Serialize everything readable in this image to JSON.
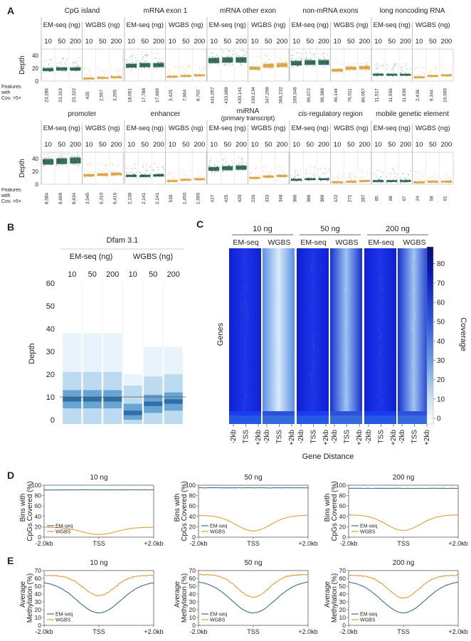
{
  "colors": {
    "emseq": "#1f5c4a",
    "wgbs": "#d9a03a",
    "lineEM": "#3d6f82",
    "lineWG": "#d9a03a",
    "heat_low": "#1010dd",
    "heat_high": "#e6f2ff"
  },
  "panelA": {
    "label": "A",
    "depth_label": "Depth",
    "feat_label": [
      "Features",
      "with",
      "Cov. >5×"
    ],
    "emseq_hdr": "EM-seq (ng)",
    "wgbs_hdr": "WGBS (ng)",
    "doses": [
      "10",
      "50",
      "200"
    ],
    "yticks": [
      "40",
      "20",
      "0"
    ],
    "row1": [
      {
        "title": "CpG island",
        "counts": [
          "23,286",
          "23,319",
          "23,322",
          "435",
          "2,557",
          "3,265"
        ],
        "em": [
          18,
          19,
          19
        ],
        "wg": [
          4,
          5,
          6
        ]
      },
      {
        "title": "mRNA exon 1",
        "counts": [
          "18,051",
          "17,788",
          "17,669",
          "3,425",
          "7,964",
          "8,702"
        ],
        "em": [
          24,
          25,
          25
        ],
        "wg": [
          7,
          8,
          9
        ]
      },
      {
        "title": "mRNA other exon",
        "counts": [
          "441,057",
          "433,989",
          "430,141",
          "230,134",
          "347,299",
          "366,232"
        ],
        "em": [
          32,
          33,
          33
        ],
        "wg": [
          20,
          24,
          25
        ]
      },
      {
        "title": "non-mRNA exons",
        "counts": [
          "100,346",
          "99,072",
          "98,388",
          "46,144",
          "76,011",
          "80,057"
        ],
        "em": [
          28,
          29,
          29
        ],
        "wg": [
          17,
          20,
          21
        ]
      },
      {
        "title": "long noncoding RNA",
        "counts": [
          "11,517",
          "11,556",
          "11,639",
          "2,436",
          "9,344",
          "10,065"
        ],
        "em": [
          10,
          10,
          10
        ],
        "wg": [
          6,
          8,
          9
        ]
      }
    ],
    "row2": [
      {
        "title": "promoter",
        "counts": [
          "8,584",
          "8,609",
          "8,634",
          "3,545",
          "6,310",
          "6,416"
        ],
        "em": [
          35,
          36,
          37
        ],
        "wg": [
          14,
          15,
          16
        ]
      },
      {
        "title": "enhancer",
        "counts": [
          "2,138",
          "2,141",
          "2,141",
          "539",
          "1,450",
          "1,555"
        ],
        "em": [
          13,
          13,
          14
        ],
        "wg": [
          5,
          7,
          8
        ]
      },
      {
        "title": "miRNA",
        "subtitle": "(primary transcript)",
        "counts": [
          "427",
          "425",
          "420",
          "226",
          "333",
          "348"
        ],
        "em": [
          24,
          25,
          26
        ],
        "wg": [
          10,
          12,
          13
        ]
      },
      {
        "title": "cis-regulatory region",
        "italic_part": "cis",
        "counts": [
          "386",
          "386",
          "389",
          "122",
          "271",
          "287"
        ],
        "em": [
          7,
          8,
          8
        ],
        "wg": [
          3,
          4,
          5
        ]
      },
      {
        "title": "mobile genetic element",
        "counts": [
          "65",
          "68",
          "67",
          "24",
          "58",
          "61"
        ],
        "em": [
          5,
          5,
          5
        ],
        "wg": [
          3,
          4,
          4
        ]
      }
    ]
  },
  "panelB": {
    "label": "B",
    "title": "Dfam 3.1",
    "emseq_hdr": "EM-seq (ng)",
    "wgbs_hdr": "WGBS (ng)",
    "doses": [
      "10",
      "50",
      "200"
    ],
    "ylabel": "Depth",
    "yticks": [
      "60",
      "50",
      "40",
      "30",
      "20",
      "10",
      "0"
    ],
    "medians": [
      9,
      9,
      9,
      3,
      7,
      8
    ]
  },
  "panelC": {
    "label": "C",
    "groups": [
      "10 ng",
      "50 ng",
      "200 ng"
    ],
    "methods": [
      "EM-seq",
      "WGBS"
    ],
    "ylabel": "Genes",
    "xticks": [
      "-2kb",
      "TSS",
      "+2kb"
    ],
    "xlabel": "Gene Distance",
    "colorbar_label": "Coverage",
    "colorbar_ticks": [
      "80",
      "70",
      "60",
      "50",
      "40",
      "30",
      "20",
      "10",
      "0"
    ]
  },
  "panelD": {
    "label": "D",
    "ylabel": [
      "Bins with",
      "CpGs Covered (%)"
    ],
    "yticks": [
      "100",
      "80",
      "60",
      "40",
      "20",
      "0"
    ],
    "xticks": [
      "-2.0kb",
      "TSS",
      "+2.0kb"
    ],
    "legend": [
      "EM-seq",
      "WGBS"
    ],
    "plots": [
      {
        "title": "10 ng",
        "em_level": 91,
        "wg_edge": 19,
        "wg_min": 5
      },
      {
        "title": "50 ng",
        "em_level": 95,
        "wg_edge": 42,
        "wg_min": 12
      },
      {
        "title": "200 ng",
        "em_level": 94,
        "wg_edge": 43,
        "wg_min": 13
      }
    ]
  },
  "panelE": {
    "label": "E",
    "ylabel": [
      "Average",
      "Methylation (%)"
    ],
    "yticks": [
      "70",
      "60",
      "50",
      "40",
      "30",
      "20",
      "10",
      "0"
    ],
    "xticks": [
      "-2.0kb",
      "TSS",
      "+2.0kb"
    ],
    "legend": [
      "EM-seq",
      "WGBS"
    ],
    "plots": [
      {
        "title": "10 ng",
        "em_edge": 56,
        "em_min": 16,
        "wg_edge": 64,
        "wg_min": 38
      },
      {
        "title": "50 ng",
        "em_edge": 57,
        "em_min": 16,
        "wg_edge": 65,
        "wg_min": 36
      },
      {
        "title": "200 ng",
        "em_edge": 57,
        "em_min": 16,
        "wg_edge": 64,
        "wg_min": 35
      }
    ]
  }
}
